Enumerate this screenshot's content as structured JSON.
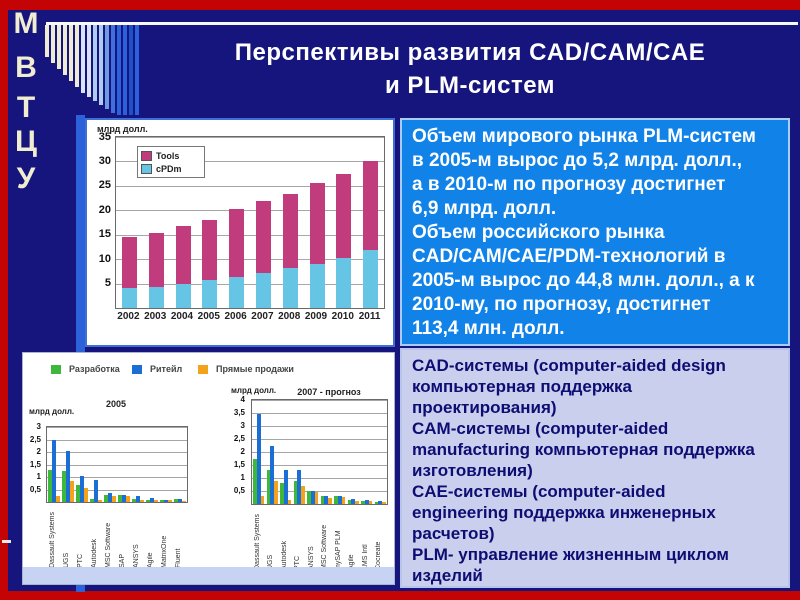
{
  "slide": {
    "title_line1": "Перспективы развития CAD/CAM/CAE",
    "title_line2": "и PLM-систем"
  },
  "logo": {
    "letters": [
      "М",
      "В",
      "Т",
      "Ц",
      "У"
    ],
    "stripe_heights": [
      32,
      38,
      44,
      50,
      56,
      62,
      68,
      72,
      76,
      80,
      84,
      88,
      90,
      90,
      90,
      90
    ],
    "stripe_colors": [
      "#EFEBD2",
      "#EFEBD2",
      "#EFEBD2",
      "#EFEBD2",
      "#EFEBD2",
      "#EFEBD2",
      "#D8E4F6",
      "#D8E4F6",
      "#AECCF0",
      "#AECCF0",
      "#6E9BE4",
      "#3E6FDC",
      "#2B62DC",
      "#2B62DC",
      "#1E50C8",
      "#2B62DC"
    ]
  },
  "market_text": {
    "lines": [
      "Объем мирового рынка PLM-систем",
      "в 2005-м вырос до 5,2 млрд. долл.,",
      "а в 2010-м по прогнозу достигнет",
      "6,9 млрд. долл.",
      "Объем российского рынка",
      "CAD/CAM/CAE/PDM-технологий в",
      "2005-м вырос до 44,8 млн. долл., а к",
      "2010-му, по прогнозу, достигнет",
      "113,4 млн. долл."
    ]
  },
  "definitions_text": {
    "lines": [
      "CAD-системы (computer-aided design",
      "компьютерная поддержка",
      "проектирования)",
      "CAM-системы (computer-aided",
      "manufacturing компьютерная поддержка",
      "изготовления)",
      "CAE-системы (computer-aided",
      "engineering поддержка инженерных",
      "расчетов)",
      "PLM- управление жизненным циклом",
      "изделий"
    ]
  },
  "vendors_legend": [
    {
      "label": "Разработка",
      "color": "#3DB83D"
    },
    {
      "label": "Ритейл",
      "color": "#1B6FD4"
    },
    {
      "label": "Прямые продажи",
      "color": "#F2A21B"
    }
  ],
  "colors": {
    "frame_red": "#C40404",
    "background_navy": "#15157D",
    "panel_blue": "#1182E8",
    "panel_lavender": "#C9CFEC",
    "accent_strip_blue": "#2B62D9"
  },
  "chart_data": [
    {
      "id": "plm-world-market",
      "type": "bar",
      "stacked": true,
      "title": "",
      "ylabel": "млрд долл.",
      "xlabel": "",
      "ylim": [
        0,
        35
      ],
      "ytick_step": 5,
      "grid": true,
      "legend_position": "top-left-inside",
      "categories": [
        "2002",
        "2003",
        "2004",
        "2005",
        "2006",
        "2007",
        "2008",
        "2009",
        "2010",
        "2011"
      ],
      "series": [
        {
          "name": "Tools",
          "color": "#C13C7C",
          "values": [
            10.5,
            10.9,
            11.7,
            12.3,
            13.8,
            14.7,
            15.2,
            16.4,
            17.2,
            18.2
          ]
        },
        {
          "name": "cPDm",
          "color": "#66C4E4",
          "values": [
            4.0,
            4.4,
            5.0,
            5.8,
            6.4,
            7.2,
            8.1,
            9.1,
            10.3,
            11.8
          ]
        }
      ]
    },
    {
      "id": "plm-vendors-2005",
      "type": "bar",
      "stacked": false,
      "title": "2005",
      "ylabel": "млрд долл.",
      "xlabel": "",
      "ylim": [
        0,
        3
      ],
      "ytick_step": 0.5,
      "grid": true,
      "legend_position": "top-outside-shared",
      "categories": [
        "Dassault Systems",
        "UGS",
        "PTC",
        "Autodesk",
        "MSC Software",
        "SAP",
        "ANSYS",
        "Agile",
        "MatrixOne",
        "Fluent"
      ],
      "series": [
        {
          "name": "Разработка",
          "color": "#3DB83D",
          "values": [
            1.3,
            1.25,
            0.7,
            0.12,
            0.3,
            0.28,
            0.12,
            0.08,
            0.07,
            0.12
          ]
        },
        {
          "name": "Ритейл",
          "color": "#1B6FD4",
          "values": [
            2.5,
            2.05,
            1.05,
            0.9,
            0.35,
            0.3,
            0.25,
            0.15,
            0.1,
            0.13
          ]
        },
        {
          "name": "Прямые продажи",
          "color": "#F2A21B",
          "values": [
            0.25,
            0.85,
            0.55,
            0.07,
            0.25,
            0.25,
            0.1,
            0.08,
            0.08,
            0.05
          ]
        }
      ]
    },
    {
      "id": "plm-vendors-2007-forecast",
      "type": "bar",
      "stacked": false,
      "title": "2007 - прогноз",
      "ylabel": "млрд долл.",
      "xlabel": "",
      "ylim": [
        0,
        4
      ],
      "ytick_step": 0.5,
      "grid": true,
      "legend_position": "top-outside-shared",
      "categories": [
        "Dassault Systems",
        "UGS",
        "Autodesk",
        "PTC",
        "ANSYS",
        "MSC Software",
        "mySAP PLM",
        "Agile",
        "LMS Intl",
        "Cocreate"
      ],
      "series": [
        {
          "name": "Разработка",
          "color": "#3DB83D",
          "values": [
            1.75,
            1.3,
            0.8,
            0.9,
            0.5,
            0.3,
            0.3,
            0.15,
            0.1,
            0.08
          ]
        },
        {
          "name": "Ритейл",
          "color": "#1B6FD4",
          "values": [
            3.45,
            2.25,
            1.3,
            1.3,
            0.5,
            0.3,
            0.3,
            0.2,
            0.15,
            0.1
          ]
        },
        {
          "name": "Прямые продажи",
          "color": "#F2A21B",
          "values": [
            0.3,
            0.9,
            0.15,
            0.7,
            0.45,
            0.25,
            0.28,
            0.1,
            0.1,
            0.08
          ]
        }
      ]
    }
  ]
}
